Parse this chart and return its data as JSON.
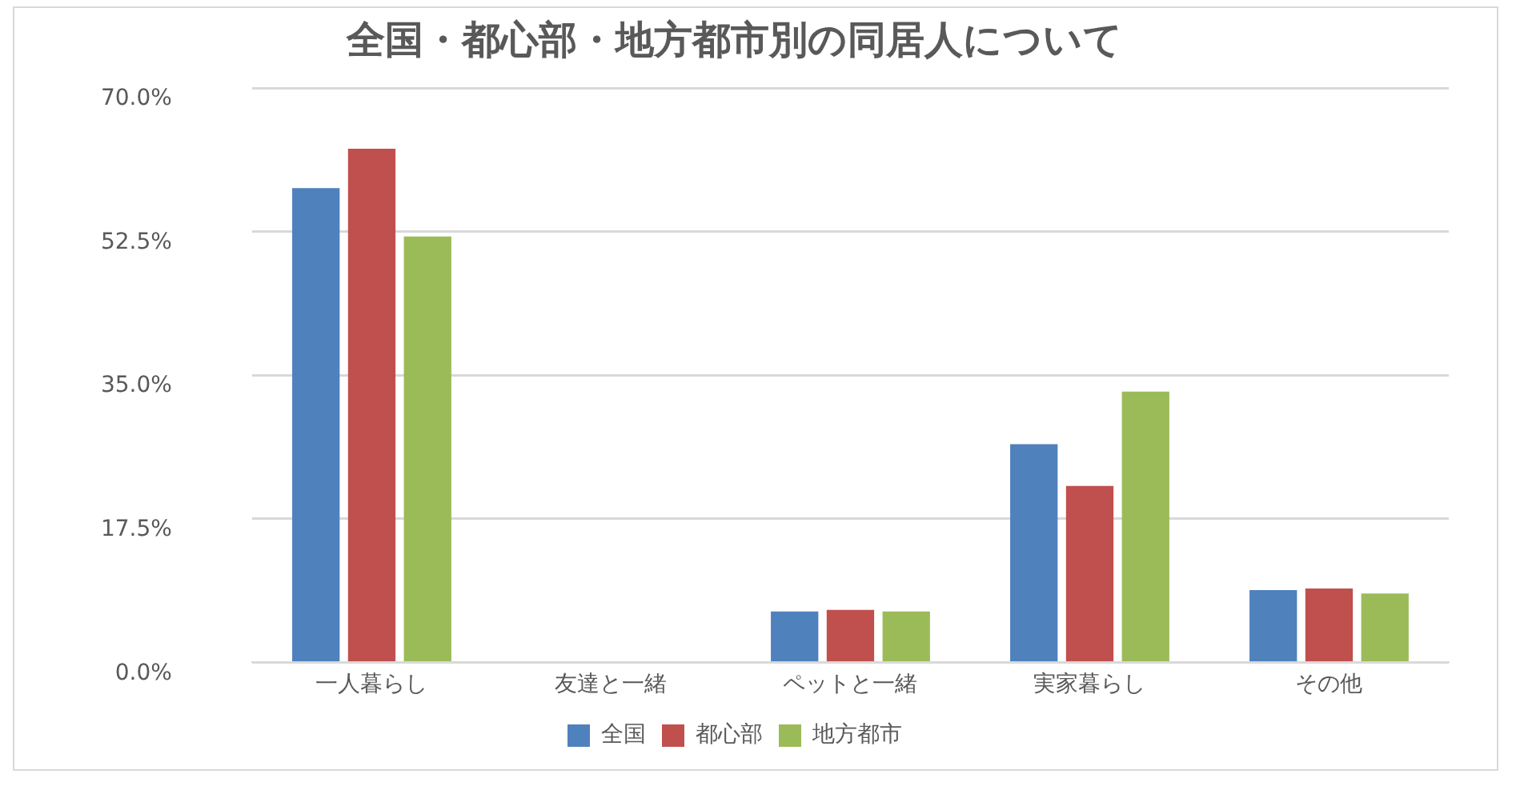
{
  "chart_data": {
    "type": "bar",
    "title": "全国・都心部・地方都市別の同居人について",
    "categories": [
      "一人暮らし",
      "友達と一緒",
      "ペットと一緒",
      "実家暮らし",
      "その他"
    ],
    "series": [
      {
        "name": "全国",
        "color": "#4f81bd",
        "values": [
          57.8,
          0,
          6.2,
          26.6,
          8.8
        ]
      },
      {
        "name": "都心部",
        "color": "#c0504d",
        "values": [
          62.6,
          0,
          6.4,
          21.5,
          9.0
        ]
      },
      {
        "name": "地方都市",
        "color": "#9bbb59",
        "values": [
          51.9,
          0,
          6.2,
          33.0,
          8.4
        ]
      }
    ],
    "ylim": [
      0,
      70
    ],
    "yticks": [
      {
        "value": 0,
        "label": "0.0%"
      },
      {
        "value": 17.5,
        "label": "17.5%"
      },
      {
        "value": 35,
        "label": "35.0%"
      },
      {
        "value": 52.5,
        "label": "52.5%"
      },
      {
        "value": 70,
        "label": "70.0%"
      }
    ],
    "grid": "y",
    "legend": "bottom"
  }
}
